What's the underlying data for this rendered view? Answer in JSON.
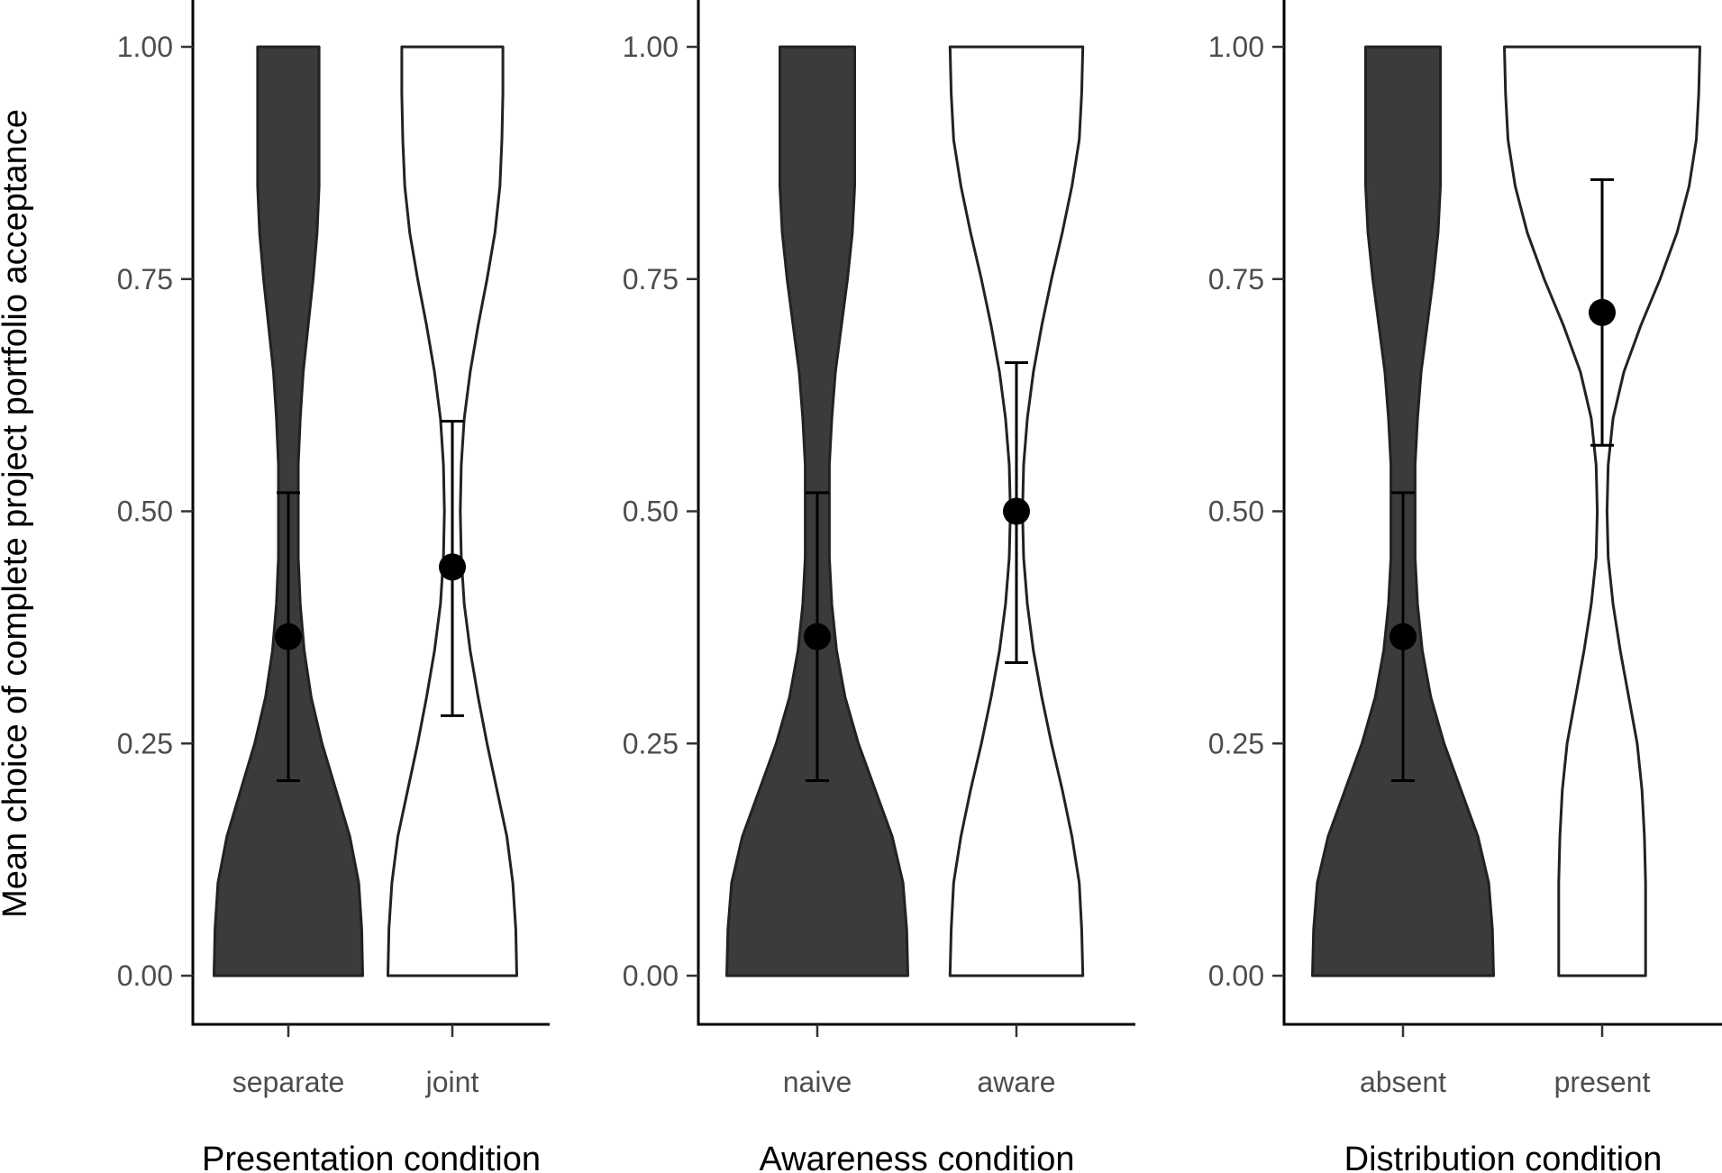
{
  "chart_data": {
    "type": "violin",
    "ylabel": "Mean choice of complete project portfolio acceptance",
    "ylim": [
      0,
      1
    ],
    "yticks": [
      "0.00",
      "0.25",
      "0.50",
      "0.75",
      "1.00"
    ],
    "grid": false,
    "legend": "none",
    "colors": {
      "dark_fill": "#3b3b3b",
      "light_fill": "#ffffff",
      "outline": "#222222",
      "point": "#000000"
    },
    "panels": [
      {
        "xlabel": "Presentation condition",
        "categories": [
          {
            "label": "separate",
            "fill": "dark",
            "mean": 0.365,
            "ci_low": 0.21,
            "ci_high": 0.52,
            "density": [
              0.75,
              0.74,
              0.71,
              0.62,
              0.48,
              0.34,
              0.23,
              0.16,
              0.12,
              0.1,
              0.1,
              0.1,
              0.12,
              0.15,
              0.2,
              0.25,
              0.29,
              0.31,
              0.31,
              0.31,
              0.31
            ]
          },
          {
            "label": "joint",
            "fill": "light",
            "mean": 0.44,
            "ci_low": 0.28,
            "ci_high": 0.597,
            "density": [
              0.65,
              0.64,
              0.61,
              0.55,
              0.45,
              0.35,
              0.26,
              0.18,
              0.12,
              0.09,
              0.08,
              0.09,
              0.12,
              0.18,
              0.26,
              0.35,
              0.43,
              0.48,
              0.5,
              0.51,
              0.51
            ]
          }
        ]
      },
      {
        "xlabel": "Awareness condition",
        "categories": [
          {
            "label": "naive",
            "fill": "dark",
            "mean": 0.365,
            "ci_low": 0.21,
            "ci_high": 0.52,
            "density": [
              0.75,
              0.74,
              0.71,
              0.62,
              0.48,
              0.34,
              0.23,
              0.16,
              0.12,
              0.1,
              0.1,
              0.1,
              0.12,
              0.15,
              0.2,
              0.25,
              0.29,
              0.31,
              0.31,
              0.31,
              0.31
            ]
          },
          {
            "label": "aware",
            "fill": "light",
            "mean": 0.5,
            "ci_low": 0.337,
            "ci_high": 0.66,
            "density": [
              0.55,
              0.54,
              0.52,
              0.46,
              0.38,
              0.29,
              0.21,
              0.14,
              0.09,
              0.06,
              0.05,
              0.06,
              0.09,
              0.14,
              0.21,
              0.29,
              0.38,
              0.46,
              0.52,
              0.54,
              0.55
            ]
          }
        ]
      },
      {
        "xlabel": "Distribution condition",
        "categories": [
          {
            "label": "absent",
            "fill": "dark",
            "mean": 0.365,
            "ci_low": 0.21,
            "ci_high": 0.52,
            "density": [
              0.75,
              0.74,
              0.71,
              0.62,
              0.48,
              0.34,
              0.23,
              0.16,
              0.12,
              0.1,
              0.1,
              0.1,
              0.12,
              0.15,
              0.2,
              0.25,
              0.29,
              0.31,
              0.31,
              0.31,
              0.31
            ]
          },
          {
            "label": "present",
            "fill": "light",
            "mean": 0.714,
            "ci_low": 0.571,
            "ci_high": 0.857,
            "density": [
              0.36,
              0.36,
              0.36,
              0.35,
              0.33,
              0.29,
              0.22,
              0.15,
              0.09,
              0.05,
              0.04,
              0.05,
              0.09,
              0.18,
              0.32,
              0.48,
              0.62,
              0.72,
              0.78,
              0.8,
              0.81
            ]
          }
        ]
      }
    ]
  }
}
